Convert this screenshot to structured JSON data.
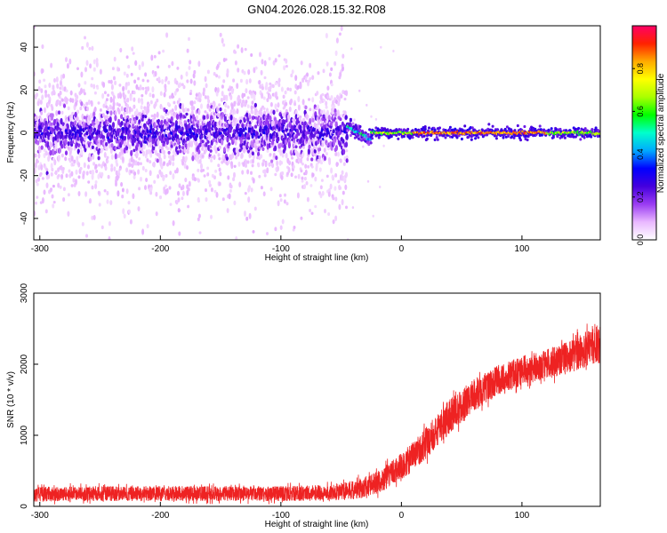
{
  "figure_title": "GN04.2026.028.15.32.R08",
  "colors": {
    "snr_line": "#ee2222",
    "frame": "#000000",
    "colorbar_stops": [
      "#ffffff",
      "#e9b8ff",
      "#9a3cf2",
      "#4400dd",
      "#0000ff",
      "#00aaff",
      "#00ffcc",
      "#00ff00",
      "#aaff00",
      "#ffff00",
      "#ffaa00",
      "#ff2200",
      "#ff0066"
    ]
  },
  "chart_data": [
    {
      "type": "heatmap",
      "title": "",
      "xlabel": "Height of straight line (km)",
      "ylabel": "Frequency (Hz)",
      "xlim": [
        -305,
        165
      ],
      "ylim": [
        -50,
        50
      ],
      "xticks": [
        -300,
        -200,
        -100,
        0,
        100
      ],
      "xtick_labels": [
        "-300",
        "-200",
        "-100",
        "0",
        "100"
      ],
      "yticks": [
        -40,
        -20,
        0,
        20,
        40
      ],
      "ytick_labels": [
        "-40",
        "-20",
        "0",
        "20",
        "40"
      ],
      "grid": false,
      "colorbar": {
        "label": "Normalized spectral amplitude",
        "range": [
          0,
          1
        ],
        "ticks": [
          0.0,
          0.2,
          0.4,
          0.6,
          0.8
        ],
        "tick_labels": [
          "0.0",
          "0.2",
          "0.4",
          "0.6",
          "0.8"
        ],
        "position": "right"
      },
      "regions": [
        {
          "x_range": [
            -305,
            -45
          ],
          "description": "broad noisy scatter, strongest near 0 Hz",
          "center_freq_hz": 0,
          "core_half_width_hz": 8,
          "amplitude": [
            0.05,
            0.3
          ]
        },
        {
          "x_range": [
            -45,
            -25
          ],
          "description": "signal emerging, dipping from +3 Hz to -3 Hz",
          "center_freq_hz": 0,
          "amplitude": [
            0.3,
            0.6
          ]
        },
        {
          "x_range": [
            -25,
            165
          ],
          "description": "narrow strong carrier line",
          "center_freq_hz": 0,
          "half_width_hz": 2,
          "amplitude": [
            0.5,
            0.95
          ]
        }
      ]
    },
    {
      "type": "line",
      "title": "",
      "xlabel": "Height of straight line (km)",
      "ylabel": "SNR (10 * v/v)",
      "xlim": [
        -305,
        165
      ],
      "ylim": [
        0,
        3000
      ],
      "xticks": [
        -300,
        -200,
        -100,
        0,
        100
      ],
      "xtick_labels": [
        "-300",
        "-200",
        "-100",
        "0",
        "100"
      ],
      "yticks": [
        0,
        1000,
        2000,
        3000
      ],
      "ytick_labels": [
        "0",
        "1000",
        "2000",
        "3000"
      ],
      "grid": false,
      "legend": "none",
      "series": [
        {
          "trend_x": [
            -305,
            -250,
            -200,
            -150,
            -100,
            -60,
            -40,
            -20,
            0,
            20,
            40,
            60,
            80,
            100,
            120,
            140,
            165
          ],
          "trend_y": [
            170,
            180,
            180,
            180,
            180,
            190,
            230,
            330,
            560,
            880,
            1270,
            1560,
            1780,
            1900,
            2000,
            2100,
            2300
          ],
          "noise_amplitude": [
            150,
            150,
            150,
            150,
            150,
            160,
            190,
            230,
            270,
            320,
            360,
            330,
            300,
            300,
            300,
            330,
            400
          ]
        }
      ]
    }
  ]
}
